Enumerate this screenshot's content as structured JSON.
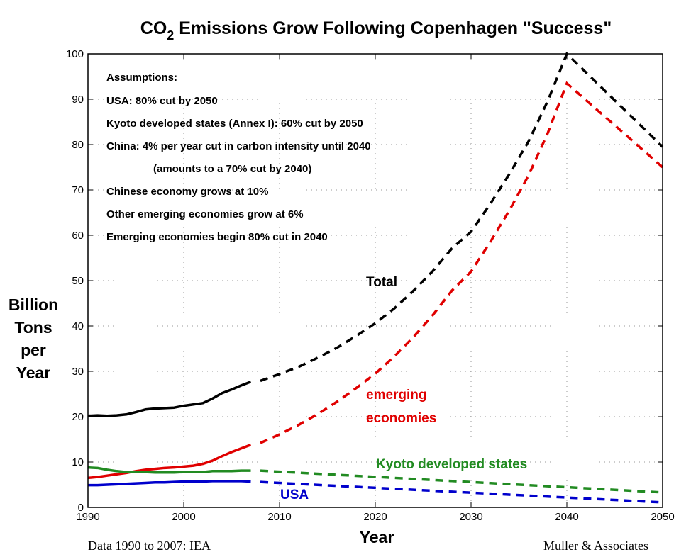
{
  "chart_data": {
    "type": "line",
    "title": "CO2 Emissions Grow Following Copenhagen \"Success\"",
    "title_parts": {
      "pre": "CO",
      "sub": "2",
      "post": " Emissions Grow Following Copenhagen \"Success\""
    },
    "xlabel": "Year",
    "ylabel_lines": [
      "Billion",
      "Tons",
      "per",
      "Year"
    ],
    "xlim": [
      1990,
      2050
    ],
    "ylim": [
      0,
      100
    ],
    "xticks": [
      1990,
      2000,
      2010,
      2020,
      2030,
      2040,
      2050
    ],
    "yticks": [
      0,
      10,
      20,
      30,
      40,
      50,
      60,
      70,
      80,
      90,
      100
    ],
    "grid": true,
    "series": [
      {
        "name": "Total",
        "color": "#000000",
        "historical": {
          "x": [
            1990,
            1991,
            1992,
            1993,
            1994,
            1995,
            1996,
            1997,
            1998,
            1999,
            2000,
            2001,
            2002,
            2003,
            2004,
            2005,
            2006,
            2007
          ],
          "y": [
            20.2,
            20.3,
            20.2,
            20.3,
            20.5,
            21.0,
            21.6,
            21.8,
            21.9,
            22.0,
            22.4,
            22.7,
            23.0,
            24.0,
            25.2,
            26.0,
            26.9,
            27.7
          ]
        },
        "projection": {
          "x": [
            2008,
            2010,
            2012,
            2014,
            2016,
            2018,
            2020,
            2022,
            2024,
            2026,
            2028,
            2030,
            2032,
            2034,
            2036,
            2038,
            2040,
            2050
          ],
          "y": [
            27.9,
            29.4,
            31.0,
            33.0,
            35.2,
            37.8,
            40.6,
            43.9,
            47.8,
            52.1,
            57.1,
            60.8,
            66.9,
            73.5,
            80.7,
            89.6,
            100,
            79.5
          ]
        }
      },
      {
        "name": "emerging economies",
        "color": "#e00000",
        "historical": {
          "x": [
            1990,
            1991,
            1992,
            1993,
            1994,
            1995,
            1996,
            1997,
            1998,
            1999,
            2000,
            2001,
            2002,
            2003,
            2004,
            2005,
            2006,
            2007
          ],
          "y": [
            6.5,
            6.7,
            7.0,
            7.3,
            7.6,
            8.0,
            8.3,
            8.5,
            8.7,
            8.8,
            9.0,
            9.2,
            9.6,
            10.3,
            11.3,
            12.2,
            13.0,
            13.8
          ]
        },
        "projection": {
          "x": [
            2008,
            2010,
            2012,
            2014,
            2016,
            2018,
            2020,
            2022,
            2024,
            2026,
            2028,
            2030,
            2032,
            2034,
            2036,
            2038,
            2040,
            2050
          ],
          "y": [
            14.2,
            16.1,
            18.2,
            20.6,
            23.3,
            26.3,
            29.5,
            33.3,
            37.6,
            42.4,
            47.8,
            52.0,
            58.5,
            65.5,
            73.2,
            82.5,
            93.5,
            75.0
          ]
        }
      },
      {
        "name": "Kyoto developed states",
        "color": "#228b22",
        "historical": {
          "x": [
            1990,
            1991,
            1992,
            1993,
            1994,
            1995,
            1996,
            1997,
            1998,
            1999,
            2000,
            2001,
            2002,
            2003,
            2004,
            2005,
            2006,
            2007
          ],
          "y": [
            8.8,
            8.7,
            8.3,
            8.0,
            7.8,
            7.8,
            7.8,
            7.7,
            7.7,
            7.7,
            7.8,
            7.8,
            7.8,
            8.0,
            8.0,
            8.0,
            8.1,
            8.1
          ]
        },
        "projection": {
          "x": [
            2008,
            2050
          ],
          "y": [
            8.1,
            3.3
          ]
        }
      },
      {
        "name": "USA",
        "color": "#0000cc",
        "historical": {
          "x": [
            1990,
            1991,
            1992,
            1993,
            1994,
            1995,
            1996,
            1997,
            1998,
            1999,
            2000,
            2001,
            2002,
            2003,
            2004,
            2005,
            2006,
            2007
          ],
          "y": [
            4.9,
            4.9,
            5.0,
            5.1,
            5.2,
            5.3,
            5.4,
            5.5,
            5.5,
            5.6,
            5.7,
            5.7,
            5.7,
            5.8,
            5.8,
            5.8,
            5.8,
            5.7
          ]
        },
        "projection": {
          "x": [
            2008,
            2050
          ],
          "y": [
            5.6,
            1.1
          ]
        }
      }
    ],
    "labels": {
      "total": "Total",
      "emerging_1": "emerging",
      "emerging_2": "economies",
      "kyoto": "Kyoto developed states",
      "usa": "USA"
    },
    "assumptions": [
      "Assumptions:",
      "USA: 80% cut by 2050",
      "Kyoto developed states (Annex I): 60% cut by 2050",
      "China: 4% per year cut in carbon intensity until 2040",
      "(amounts to a 70% cut by 2040)",
      "Chinese economy grows at 10%",
      "Other emerging economies grow at 6%",
      "Emerging economies begin 80% cut in 2040"
    ],
    "footer_left": "Data 1990 to 2007: IEA",
    "footer_right": "Muller & Associates"
  }
}
